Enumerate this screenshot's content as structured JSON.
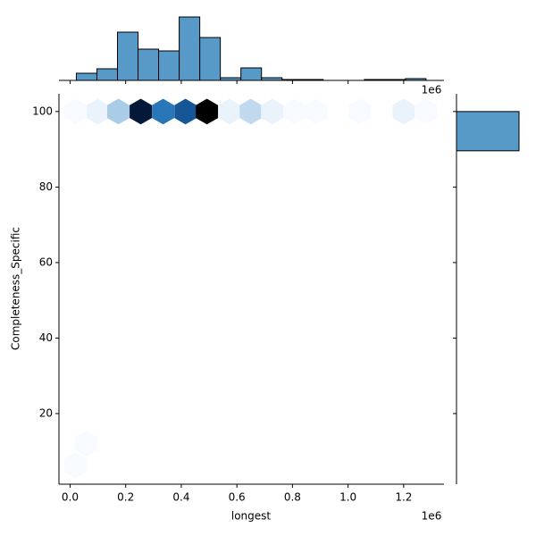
{
  "chart_data": {
    "type": "hexbin",
    "x_label": "longest",
    "y_label": "Completeness_Specific",
    "x_offset_label": "1e6",
    "xlim": [
      -40000,
      1345000
    ],
    "ylim": [
      1.3,
      104.7
    ],
    "xticks": [
      {
        "value": 0,
        "label": "0.0"
      },
      {
        "value": 200000,
        "label": "0.2"
      },
      {
        "value": 400000,
        "label": "0.4"
      },
      {
        "value": 600000,
        "label": "0.6"
      },
      {
        "value": 800000,
        "label": "0.8"
      },
      {
        "value": 1000000,
        "label": "1.0"
      },
      {
        "value": 1200000,
        "label": "1.2"
      }
    ],
    "yticks": [
      20,
      40,
      60,
      80,
      100
    ],
    "cmap": [
      "#f7fbff",
      "#c6dbef",
      "#6baed6",
      "#2171b5",
      "#08306b",
      "#000000"
    ],
    "hexbin": {
      "x": [
        19300,
        99700,
        173700,
        254200,
        334600,
        415100,
        492300,
        572700,
        650000,
        727000,
        807600,
        884800,
        1042500,
        1200000,
        1280000,
        57900,
        19300
      ],
      "y": [
        100,
        100,
        100,
        100,
        100,
        100,
        100,
        100,
        100,
        100,
        100,
        100,
        100,
        100,
        100,
        12,
        6.3
      ],
      "counts": [
        1,
        2,
        6,
        18,
        12,
        14,
        20,
        2,
        5,
        2,
        1,
        1,
        1,
        2,
        1,
        1,
        1
      ]
    },
    "hist_color": "#5799c7",
    "marginal_x": {
      "bins": [
        22500,
        96500,
        170500,
        244500,
        318500,
        392500,
        466500,
        540500,
        614500,
        688500,
        762500,
        836500,
        910500,
        984500,
        1058500,
        1132500,
        1206500,
        1280500
      ],
      "values": [
        8,
        13,
        54,
        35,
        33,
        71,
        48,
        3,
        14,
        3,
        1,
        1,
        0,
        0,
        1,
        1,
        2
      ],
      "lim": [
        0,
        72
      ]
    },
    "marginal_y": {
      "bins": [
        89.6,
        100
      ],
      "values": [
        70
      ],
      "lim": [
        0,
        72
      ]
    }
  }
}
